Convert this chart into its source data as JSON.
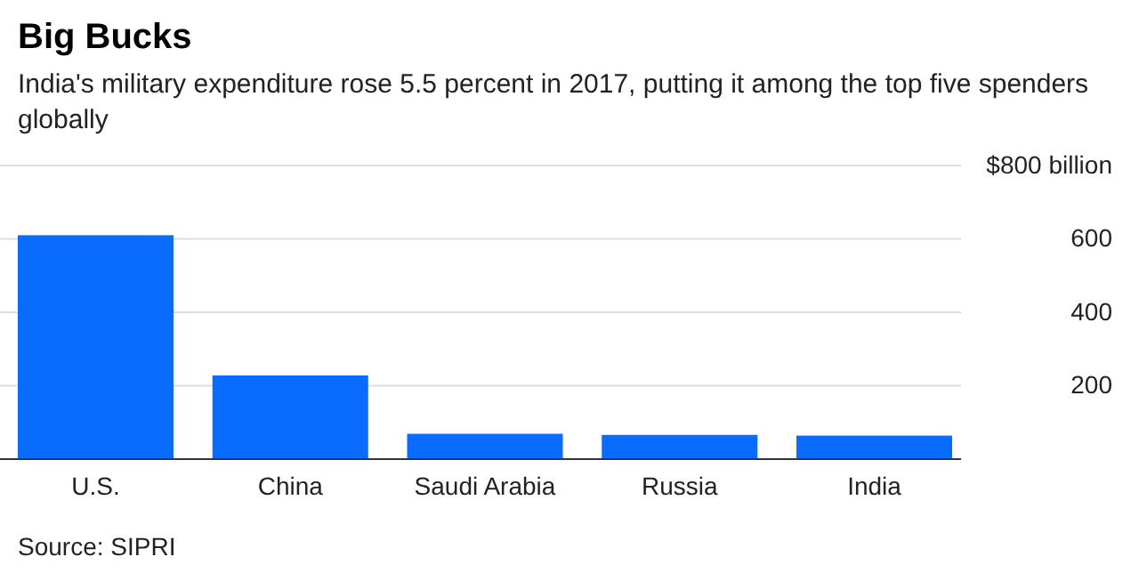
{
  "chart_data": {
    "type": "bar",
    "title": "Big Bucks",
    "subtitle": "India's military expenditure rose 5.5 percent in 2017, putting it among the top five spenders globally",
    "categories": [
      "U.S.",
      "China",
      "Saudi Arabia",
      "Russia",
      "India"
    ],
    "values": [
      610,
      228,
      69,
      66,
      64
    ],
    "color": "#0a6cff",
    "ylim": [
      0,
      800
    ],
    "yticks": [
      {
        "value": 0,
        "label": null
      },
      200,
      400,
      600,
      {
        "value": 800,
        "label": "$800 billion"
      }
    ],
    "grid": "y",
    "annotations": [
      "Source: SIPRI"
    ]
  }
}
